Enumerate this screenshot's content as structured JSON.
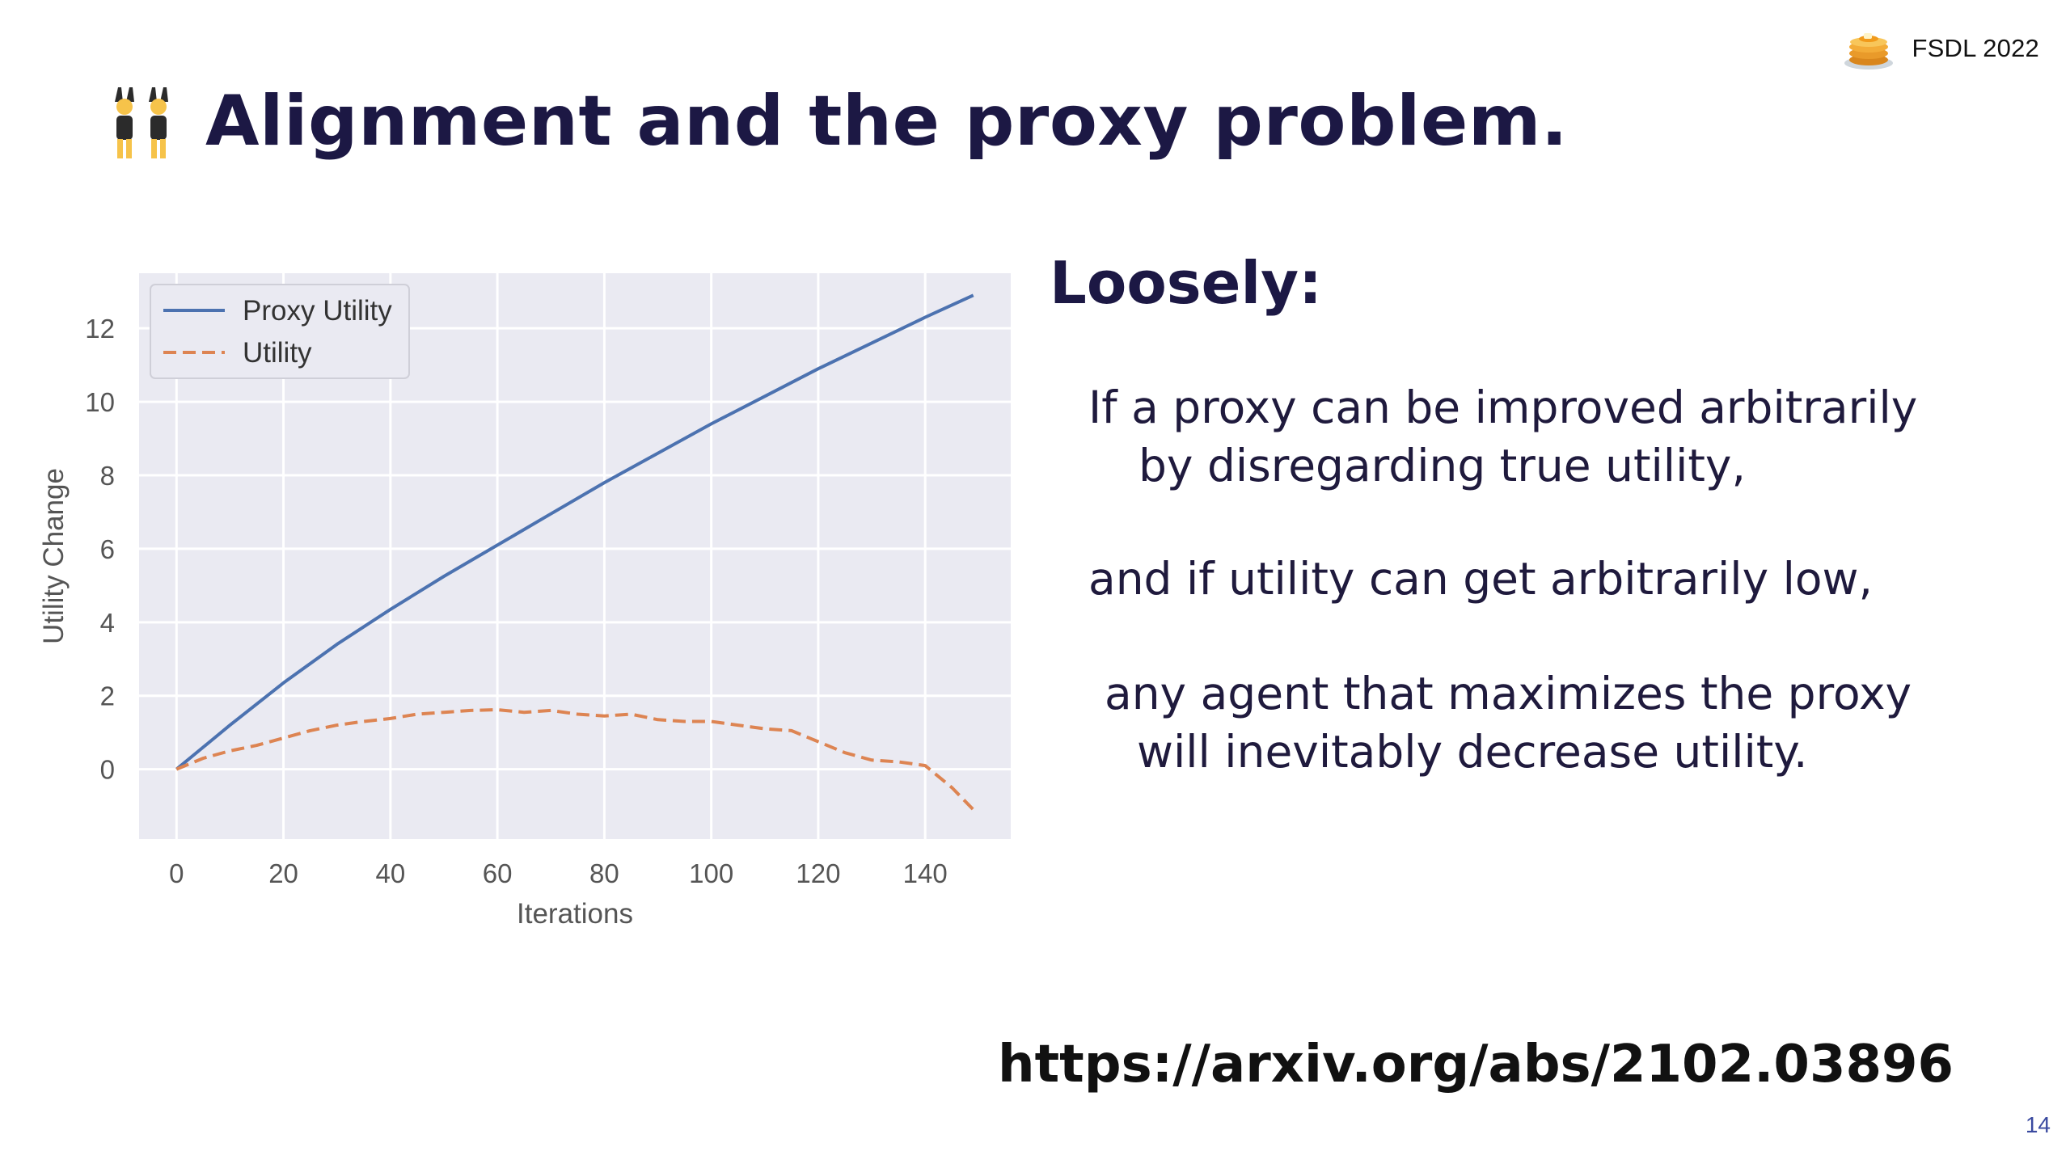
{
  "header": {
    "brand_text": "FSDL 2022",
    "brand_icon": "pancakes-icon",
    "title_icon": "people-with-bunny-ears-icon",
    "title": "Alignment and the proxy problem."
  },
  "body": {
    "heading": "Loosely:",
    "lines": [
      "If a proxy can be improved arbitrarily",
      "by disregarding true utility,",
      "and if utility can get arbitrarily low,",
      "any agent that maximizes the proxy",
      "will inevitably decrease utility."
    ],
    "url": "https://arxiv.org/abs/2102.03896"
  },
  "footer": {
    "page_number": "14"
  },
  "colors": {
    "title": "#1c1844",
    "plot_bg": "#eaeaf2",
    "proxy_line": "#4c72b0",
    "utility_line": "#dd8452"
  },
  "chart_data": {
    "type": "line",
    "title": "",
    "xlabel": "Iterations",
    "ylabel": "Utility Change",
    "xlim": [
      -7,
      156
    ],
    "ylim": [
      -1.9,
      13.5
    ],
    "xticks": [
      0,
      20,
      40,
      60,
      80,
      100,
      120,
      140
    ],
    "yticks": [
      0,
      2,
      4,
      6,
      8,
      10,
      12
    ],
    "grid": true,
    "legend_position": "top-left",
    "series": [
      {
        "name": "Proxy Utility",
        "style": "solid",
        "color": "#4c72b0",
        "x": [
          0,
          10,
          20,
          30,
          40,
          50,
          60,
          70,
          80,
          90,
          100,
          110,
          120,
          130,
          140,
          149
        ],
        "y": [
          0,
          1.2,
          2.35,
          3.4,
          4.35,
          5.25,
          6.1,
          6.95,
          7.8,
          8.6,
          9.4,
          10.15,
          10.9,
          11.6,
          12.3,
          12.9
        ]
      },
      {
        "name": "Utility",
        "style": "dashed",
        "color": "#dd8452",
        "x": [
          0,
          5,
          10,
          15,
          20,
          25,
          30,
          35,
          40,
          45,
          50,
          55,
          60,
          65,
          70,
          75,
          80,
          85,
          90,
          95,
          100,
          105,
          110,
          115,
          120,
          125,
          130,
          135,
          140,
          145,
          149
        ],
        "y": [
          0,
          0.3,
          0.5,
          0.65,
          0.85,
          1.05,
          1.2,
          1.3,
          1.38,
          1.5,
          1.55,
          1.6,
          1.62,
          1.55,
          1.6,
          1.5,
          1.45,
          1.5,
          1.35,
          1.3,
          1.3,
          1.2,
          1.1,
          1.05,
          0.75,
          0.45,
          0.25,
          0.2,
          0.1,
          -0.5,
          -1.1
        ]
      }
    ]
  }
}
